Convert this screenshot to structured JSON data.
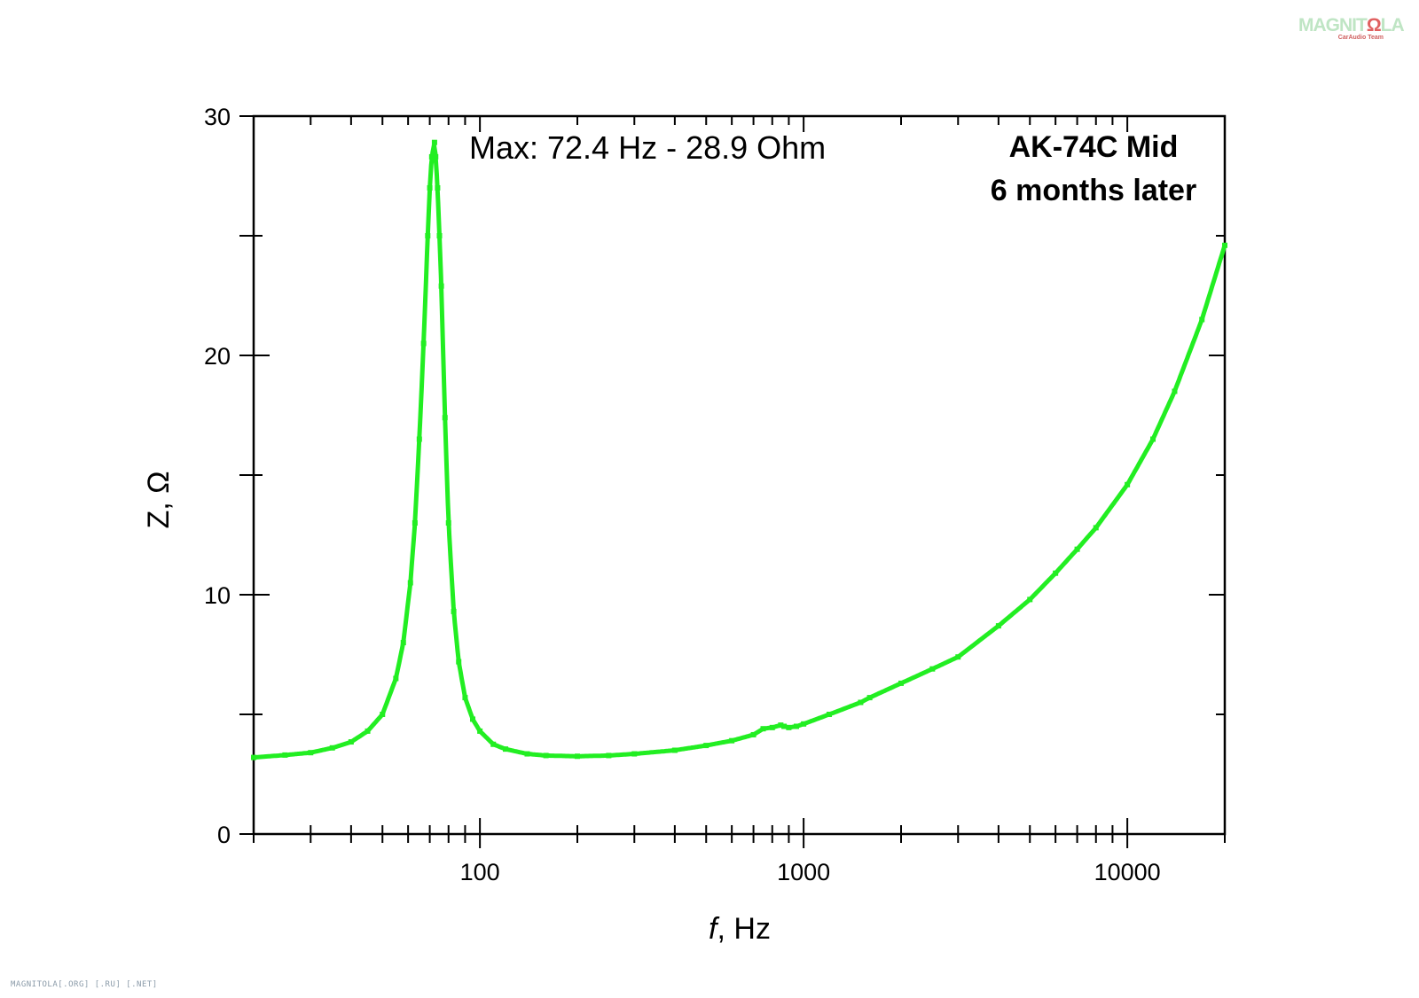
{
  "chart_data": {
    "type": "line",
    "title_lines": [
      "AK-74C Mid",
      "6 months later"
    ],
    "annotation": "Max: 72.4 Hz - 28.9 Ohm",
    "xlabel_italic": "f",
    "xlabel_rest": ", Hz",
    "ylabel": "Z, Ω",
    "x_scale": "log",
    "xlim": [
      20,
      20000
    ],
    "ylim": [
      0,
      30
    ],
    "x_ticks": [
      100,
      1000,
      10000
    ],
    "x_tick_labels": [
      "100",
      "1000",
      "10000"
    ],
    "y_ticks": [
      0,
      10,
      20,
      30
    ],
    "y_tick_labels": [
      "0",
      "10",
      "20",
      "30"
    ],
    "grid": false,
    "series_color": "#22ee22",
    "series": [
      {
        "x": [
          20,
          25,
          30,
          35,
          40,
          45,
          50,
          55,
          58,
          61,
          63,
          65,
          67,
          69,
          70,
          71,
          72.4,
          73,
          74,
          75,
          76,
          78,
          80,
          83,
          86,
          90,
          95,
          100,
          110,
          120,
          140,
          160,
          200,
          250,
          300,
          400,
          500,
          600,
          700,
          750,
          800,
          850,
          870,
          900,
          950,
          1000,
          1200,
          1500,
          1600,
          2000,
          2500,
          3000,
          4000,
          5000,
          6000,
          7000,
          8000,
          10000,
          12000,
          14000,
          17000,
          20000
        ],
        "y": [
          3.2,
          3.3,
          3.4,
          3.6,
          3.85,
          4.3,
          5.0,
          6.5,
          8.0,
          10.5,
          13.0,
          16.5,
          20.5,
          25.0,
          27.0,
          28.3,
          28.9,
          28.3,
          27.0,
          25.0,
          22.9,
          17.4,
          13.0,
          9.3,
          7.2,
          5.7,
          4.8,
          4.3,
          3.75,
          3.55,
          3.35,
          3.28,
          3.25,
          3.28,
          3.35,
          3.5,
          3.7,
          3.9,
          4.15,
          4.4,
          4.45,
          4.55,
          4.5,
          4.45,
          4.5,
          4.6,
          5.0,
          5.5,
          5.7,
          6.3,
          6.9,
          7.4,
          8.7,
          9.8,
          10.9,
          11.9,
          12.8,
          14.6,
          16.5,
          18.5,
          21.5,
          24.6
        ]
      }
    ]
  },
  "footer_text": "MAGNITOLA[.ORG] [.RU] [.NET]",
  "logo": {
    "text_start": "MAGNIT",
    "text_o": "Ω",
    "text_end": "LA",
    "subtitle": "CarAudio Team"
  }
}
